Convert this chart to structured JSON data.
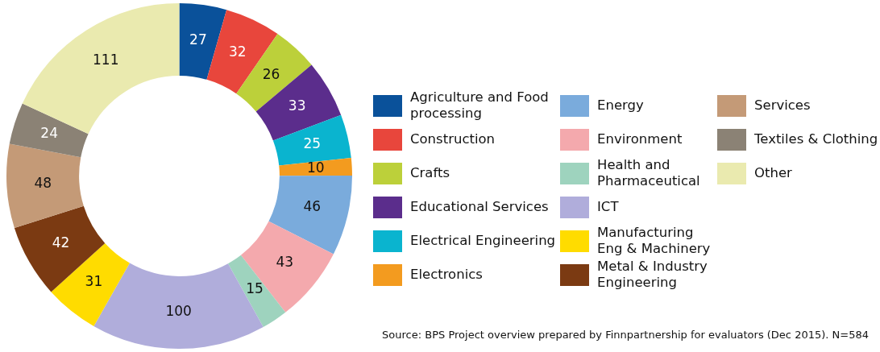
{
  "chart_data": {
    "type": "donut",
    "categories": [
      "Agriculture and Food processing",
      "Construction",
      "Crafts",
      "Educational Services",
      "Electrical Engineering",
      "Electronics",
      "Energy",
      "Environment",
      "Health and Pharmaceutical",
      "ICT",
      "Manufacturing Eng & Machinery",
      "Metal & Industry Engineering",
      "Services",
      "Textiles & Clothing",
      "Other"
    ],
    "values": [
      27,
      32,
      26,
      33,
      25,
      10,
      46,
      43,
      15,
      100,
      31,
      42,
      48,
      24,
      111
    ],
    "colors": [
      "#0a519a",
      "#e8463c",
      "#bcd03a",
      "#5b2d8c",
      "#0ab4cf",
      "#f39b1f",
      "#7aabdc",
      "#f4a9ad",
      "#9ed3be",
      "#b0addb",
      "#ffdc00",
      "#7b3a12",
      "#c49a77",
      "#8b8275",
      "#eaeaaf"
    ],
    "data_labels": true,
    "legend": "right",
    "annotations": [
      "Source: BPS Project overview prepared by Finnpartnership for evaluators (Dec 2015). N=584"
    ]
  }
}
